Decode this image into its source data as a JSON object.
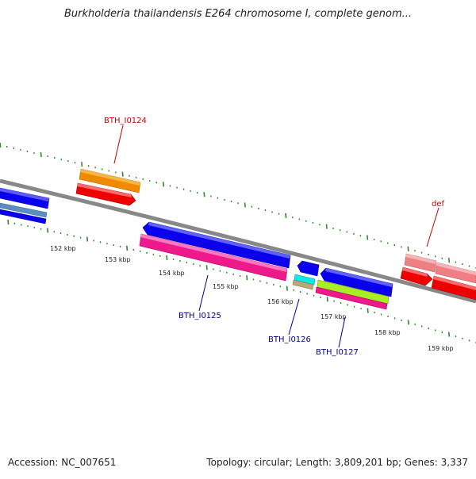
{
  "title": "Burkholderia thailandensis E264 chromosome I, complete genom...",
  "footer": {
    "accession": "Accession: NC_007651",
    "summary": "Topology: circular; Length: 3,809,201 bp; Genes: 3,337"
  },
  "scale_labels": [
    "152 kbp",
    "153 kbp",
    "154 kbp",
    "155 kbp",
    "156 kbp",
    "157 kbp",
    "158 kbp",
    "159 kbp"
  ],
  "gene_labels": {
    "bth_i0124": "BTH_I0124",
    "bth_i0125": "BTH_I0125",
    "bth_i0126": "BTH_I0126",
    "bth_i0127": "BTH_I0127",
    "def": "def"
  },
  "colors": {
    "backbone": "#888888",
    "tick": "#2f8a2f",
    "blue": "#0a00ee",
    "orange": "#f08a00",
    "red": "#ee0000",
    "magenta": "#ee1a8c",
    "cyan": "#10e8e8",
    "tan": "#b9a97a",
    "lime": "#a8ee22",
    "pink": "#ee7f82",
    "steel": "#5b8fbf",
    "label_red": "#cc0000",
    "label_blue": "#00008b"
  }
}
